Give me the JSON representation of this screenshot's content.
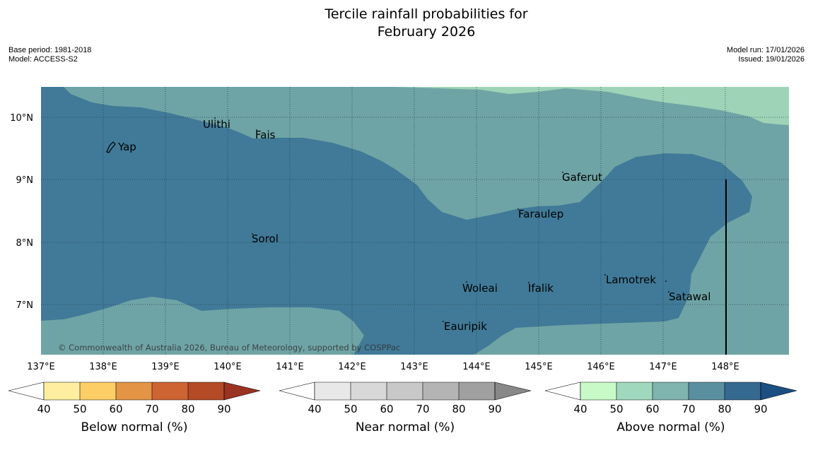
{
  "header": {
    "title_line1": "Tercile rainfall probabilities for",
    "title_line2": "February 2026",
    "base_period": "Base period: 1981-2018",
    "model": "Model: ACCESS-S2",
    "model_run": "Model run: 17/01/2026",
    "issued": "Issued: 19/01/2026"
  },
  "map": {
    "lat_labels": [
      "10°N",
      "9°N",
      "8°N",
      "7°N"
    ],
    "lon_labels": [
      "137°E",
      "138°E",
      "139°E",
      "140°E",
      "141°E",
      "142°E",
      "143°E",
      "144°E",
      "145°E",
      "146°E",
      "147°E",
      "148°E"
    ],
    "places": [
      "Yap",
      "Ulithi",
      "Fais",
      "Gaferut",
      "Faraulep",
      "Sorol",
      "Lamotrek",
      "Woleai",
      "Ifalik",
      "Satawal",
      "Eauripik"
    ],
    "copyright": "© Commonwealth of Australia 2026, Bureau of Meteorology, supported by COSPPac",
    "colors": {
      "above_60_70": "#6fa4a6",
      "above_80_90": "#417a98",
      "above_50_60": "#9ed3b8"
    }
  },
  "legends": {
    "below": {
      "label": "Below normal (%)",
      "ticks": [
        "40",
        "50",
        "60",
        "70",
        "80",
        "90"
      ],
      "colors": [
        "#ffffff",
        "#ffeea0",
        "#fdcd66",
        "#e39444",
        "#cf6433",
        "#b44a26",
        "#9a3322"
      ]
    },
    "near": {
      "label": "Near normal (%)",
      "ticks": [
        "40",
        "50",
        "60",
        "70",
        "80",
        "90"
      ],
      "colors": [
        "#ffffff",
        "#e8e8e8",
        "#d8d8d8",
        "#c8c8c8",
        "#b4b4b4",
        "#a0a0a0",
        "#888888"
      ]
    },
    "above": {
      "label": "Above normal (%)",
      "ticks": [
        "40",
        "50",
        "60",
        "70",
        "80",
        "90"
      ],
      "colors": [
        "#ffffff",
        "#c8fac8",
        "#a0d8bd",
        "#80b4ae",
        "#5a8fa0",
        "#36698f",
        "#1b4f82"
      ]
    }
  }
}
